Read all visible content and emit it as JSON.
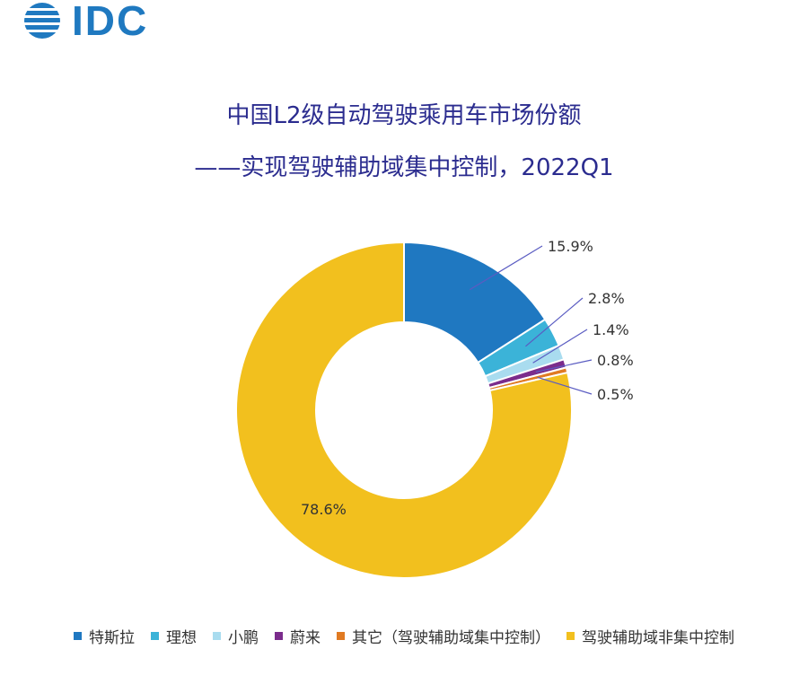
{
  "logo": {
    "text": "IDC"
  },
  "chart_data": {
    "type": "pie",
    "title": "中国L2级自动驾驶乘用车市场份额",
    "subtitle": "——实现驾驶辅助域集中控制，2022Q1",
    "donut": true,
    "categories": [
      "特斯拉",
      "理想",
      "小鹏",
      "蔚来",
      "其它（驾驶辅助域集中控制）",
      "驾驶辅助域非集中控制"
    ],
    "values": [
      15.9,
      2.8,
      1.4,
      0.8,
      0.5,
      78.6
    ],
    "labels": [
      "15.9%",
      "2.8%",
      "1.4%",
      "0.8%",
      "0.5%",
      "78.6%"
    ],
    "colors": [
      "#1f78c1",
      "#3bb3d8",
      "#a9dcef",
      "#7b2c8c",
      "#e07a22",
      "#f2c01e"
    ],
    "legend_position": "bottom"
  }
}
